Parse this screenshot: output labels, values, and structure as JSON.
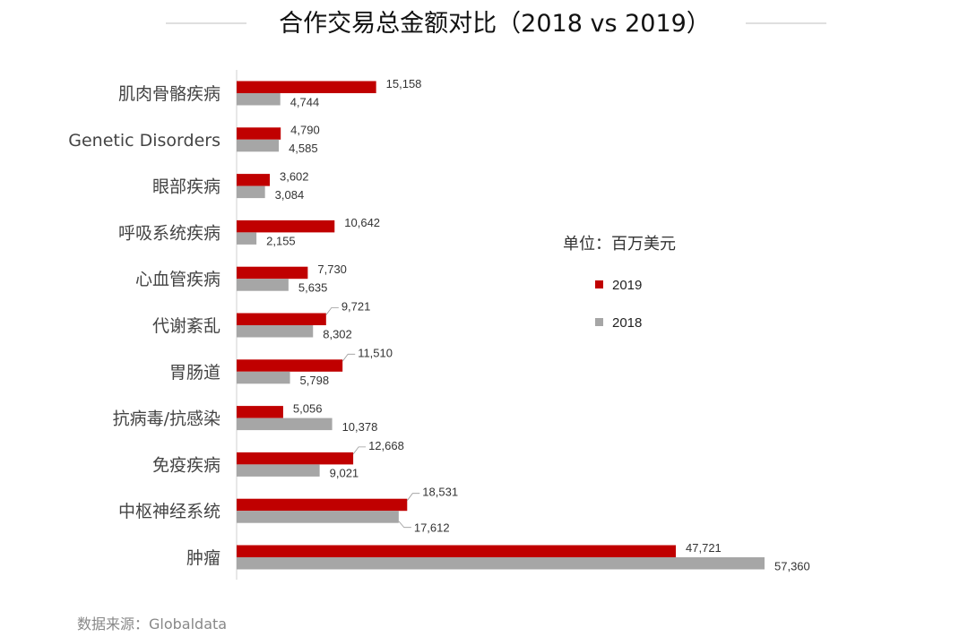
{
  "title": "合作交易总金额对比（2018 vs 2019）",
  "unit_label": "单位：百万美元",
  "source": "数据来源：Globaldata",
  "colors": {
    "2019": "#c00000",
    "2018": "#a6a6a6"
  },
  "chart_data": {
    "type": "bar",
    "orientation": "horizontal",
    "title": "合作交易总金额对比（2018 vs 2019）",
    "categories": [
      "肌肉骨骼疾病",
      "Genetic Disorders",
      "眼部疾病",
      "呼吸系统疾病",
      "心血管疾病",
      "代谢紊乱",
      "胃肠道",
      "抗病毒/抗感染",
      "免疫疾病",
      "中枢神经系统",
      "肿瘤"
    ],
    "series": [
      {
        "name": "2019",
        "values": [
          15158,
          4790,
          3602,
          10642,
          7730,
          9721,
          11510,
          5056,
          12668,
          18531,
          47721
        ],
        "labels": [
          "15,158",
          "4,790",
          "3,602",
          "10,642",
          "7,730",
          "9,721",
          "11,510",
          "5,056",
          "12,668",
          "18,531",
          "47,721"
        ]
      },
      {
        "name": "2018",
        "values": [
          4744,
          4585,
          3084,
          2155,
          5635,
          8302,
          5798,
          10378,
          9021,
          17612,
          57360
        ],
        "labels": [
          "4,744",
          "4,585",
          "3,084",
          "2,155",
          "5,635",
          "8,302",
          "5,798",
          "10,378",
          "9,021",
          "17,612",
          "57,360"
        ]
      }
    ],
    "xlim": [
      0,
      57360
    ],
    "legend_position": "right",
    "grid": false
  }
}
